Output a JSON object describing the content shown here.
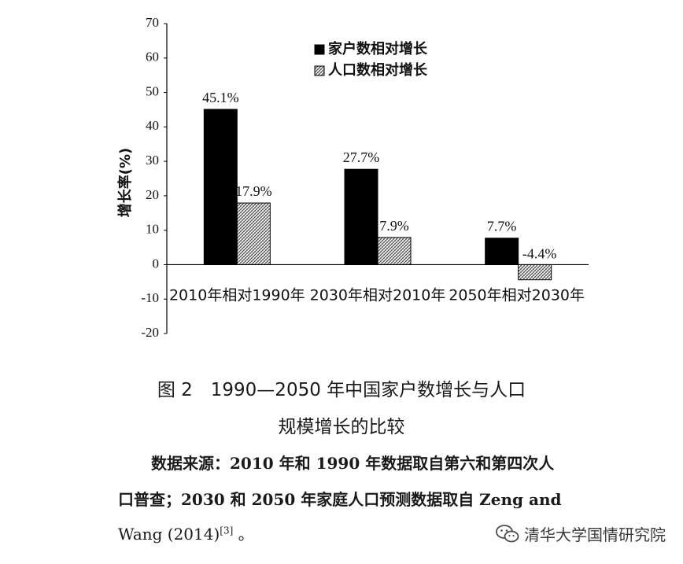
{
  "chart_data": {
    "type": "bar",
    "categories": [
      "2010年相对1990年",
      "2030年相对2010年",
      "2050年相对2030年"
    ],
    "series": [
      {
        "name": "家户数相对增长",
        "values": [
          45.1,
          27.7,
          7.7
        ],
        "labels": [
          "45.1%",
          "27.7%",
          "7.7%"
        ],
        "color": "#000000",
        "pattern": "solid"
      },
      {
        "name": "人口数相对增长",
        "values": [
          17.9,
          7.9,
          -4.4
        ],
        "labels": [
          "17.9%",
          "7.9%",
          "-4.4%"
        ],
        "color": "#555555",
        "pattern": "hatched"
      }
    ],
    "ylabel": "增长率(%)",
    "xlabel": "",
    "ylim": [
      -20,
      70
    ],
    "yticks": [
      70,
      60,
      50,
      40,
      30,
      20,
      10,
      0,
      -10,
      -20
    ],
    "legend_position": "top-right",
    "grid": false
  },
  "caption": {
    "line1": "图 2　1990—2050 年中国家户数增长与人口",
    "line2": "规模增长的比较"
  },
  "source": {
    "line1": "数据来源：2010 年和 1990 年数据取自第六和第四次人",
    "line2": "口普查；2030 和 2050 年家庭人口预测数据取自 Zeng and",
    "line3": "Wang (2014)",
    "citation": "[3]",
    "line3_end": "。"
  },
  "watermark": {
    "text": "清华大学国情研究院",
    "icon": "wechat-icon"
  }
}
